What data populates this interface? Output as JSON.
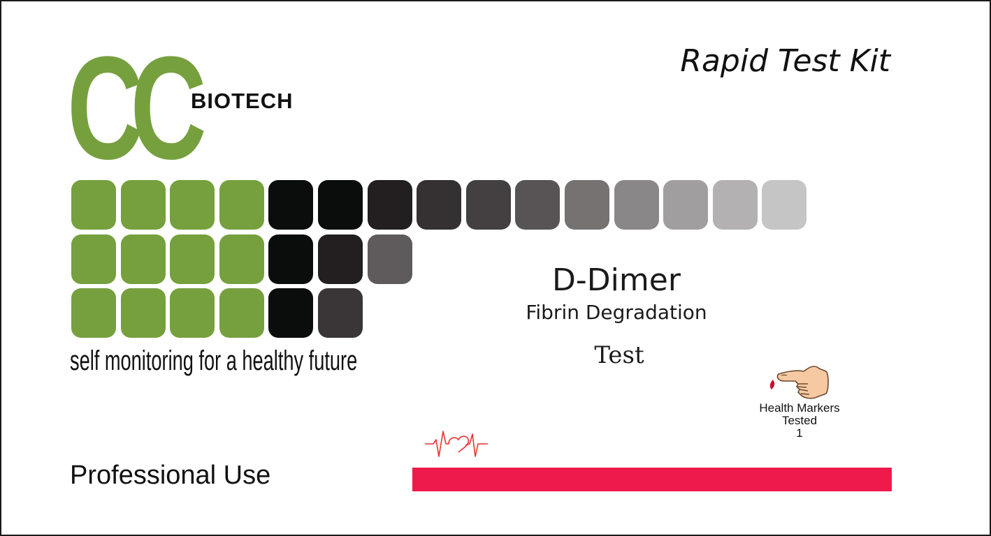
{
  "brand": {
    "logo_letters": "CC",
    "logo_word": "BIOTECH",
    "green": "#76a03e",
    "tagline": "self monitoring for a healthy future"
  },
  "headline": "Rapid Test Kit",
  "product": {
    "name": "D-Dimer",
    "subtitle": "Fibrin Degradation",
    "type": "Test"
  },
  "markers": {
    "icon": "finger-blood-drop-icon",
    "line1": "Health Markers",
    "line2": "Tested",
    "count": "1"
  },
  "usage": "Professional Use",
  "decor": {
    "pulse_icon": "heartbeat-pulse-icon",
    "bar_color": "#ee1a4b",
    "tile_rows": [
      [
        "#76a03e",
        "#76a03e",
        "#76a03e",
        "#76a03e",
        "#0b0c0c",
        "#0b0c0c",
        "#231f20",
        "#353132",
        "#444042",
        "#585455",
        "#767272",
        "#8a8788",
        "#a19e9f",
        "#b3b1b2",
        "#c6c5c5"
      ],
      [
        "#76a03e",
        "#76a03e",
        "#76a03e",
        "#76a03e",
        "#0b0c0c",
        "#231f20",
        "#5f5b5c"
      ],
      [
        "#76a03e",
        "#76a03e",
        "#76a03e",
        "#76a03e",
        "#0b0c0c",
        "#3a3637"
      ]
    ]
  }
}
